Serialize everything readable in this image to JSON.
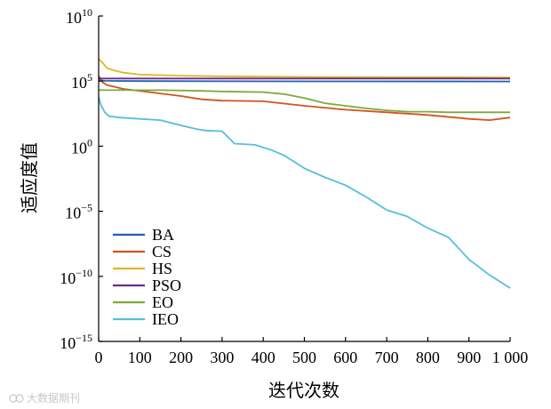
{
  "chart_data": {
    "type": "line",
    "title": "",
    "xlabel": "迭代次数",
    "ylabel": "适应度值",
    "xlim": [
      0,
      1000
    ],
    "yscale": "log",
    "ylim_exp": [
      -15,
      10
    ],
    "x_ticks": [
      0,
      100,
      200,
      300,
      400,
      500,
      600,
      700,
      800,
      900,
      1000
    ],
    "x_tick_labels": [
      "0",
      "100",
      "200",
      "300",
      "400",
      "500",
      "600",
      "700",
      "800",
      "900",
      "1 000"
    ],
    "y_ticks": [
      10,
      5,
      0,
      -5,
      -10,
      -15
    ],
    "y_tick_base": "10",
    "y_tick_exponents": [
      "10",
      "5",
      "0",
      "−5",
      "−10",
      "−15"
    ],
    "legend_position": "bottom-left",
    "series": [
      {
        "name": "BA",
        "color": "#1f5fb0",
        "points": [
          [
            0,
            5.1
          ],
          [
            5,
            5.05
          ],
          [
            15,
            5.02
          ],
          [
            100,
            5.0
          ],
          [
            500,
            4.98
          ],
          [
            1000,
            4.97
          ]
        ]
      },
      {
        "name": "CS",
        "color": "#d2541e",
        "points": [
          [
            0,
            5.4
          ],
          [
            10,
            4.9
          ],
          [
            20,
            4.7
          ],
          [
            40,
            4.55
          ],
          [
            60,
            4.4
          ],
          [
            100,
            4.25
          ],
          [
            150,
            4.05
          ],
          [
            200,
            3.85
          ],
          [
            250,
            3.6
          ],
          [
            300,
            3.5
          ],
          [
            400,
            3.45
          ],
          [
            500,
            3.1
          ],
          [
            600,
            2.8
          ],
          [
            700,
            2.6
          ],
          [
            800,
            2.4
          ],
          [
            900,
            2.1
          ],
          [
            950,
            2.0
          ],
          [
            1000,
            2.2
          ]
        ]
      },
      {
        "name": "HS",
        "color": "#e3b521",
        "points": [
          [
            0,
            6.7
          ],
          [
            10,
            6.4
          ],
          [
            20,
            6.0
          ],
          [
            40,
            5.8
          ],
          [
            60,
            5.65
          ],
          [
            100,
            5.5
          ],
          [
            200,
            5.42
          ],
          [
            300,
            5.37
          ],
          [
            500,
            5.32
          ],
          [
            700,
            5.3
          ],
          [
            1000,
            5.28
          ]
        ]
      },
      {
        "name": "PSO",
        "color": "#6a2a8a",
        "points": [
          [
            0,
            5.2
          ],
          [
            50,
            5.2
          ],
          [
            500,
            5.2
          ],
          [
            1000,
            5.2
          ]
        ]
      },
      {
        "name": "EO",
        "color": "#7aab3c",
        "points": [
          [
            0,
            4.3
          ],
          [
            50,
            4.3
          ],
          [
            150,
            4.3
          ],
          [
            250,
            4.25
          ],
          [
            300,
            4.2
          ],
          [
            400,
            4.15
          ],
          [
            450,
            4.0
          ],
          [
            500,
            3.7
          ],
          [
            550,
            3.3
          ],
          [
            600,
            3.1
          ],
          [
            650,
            2.9
          ],
          [
            700,
            2.75
          ],
          [
            750,
            2.65
          ],
          [
            800,
            2.65
          ],
          [
            850,
            2.6
          ],
          [
            1000,
            2.6
          ]
        ]
      },
      {
        "name": "IEO",
        "color": "#56bde0",
        "points": [
          [
            0,
            3.8
          ],
          [
            5,
            3.2
          ],
          [
            15,
            2.6
          ],
          [
            25,
            2.3
          ],
          [
            50,
            2.2
          ],
          [
            100,
            2.1
          ],
          [
            150,
            2.0
          ],
          [
            200,
            1.6
          ],
          [
            240,
            1.3
          ],
          [
            260,
            1.2
          ],
          [
            300,
            1.15
          ],
          [
            330,
            0.2
          ],
          [
            380,
            0.1
          ],
          [
            420,
            -0.3
          ],
          [
            450,
            -0.7
          ],
          [
            500,
            -1.7
          ],
          [
            550,
            -2.4
          ],
          [
            600,
            -3.0
          ],
          [
            650,
            -3.9
          ],
          [
            700,
            -4.9
          ],
          [
            750,
            -5.4
          ],
          [
            800,
            -6.3
          ],
          [
            850,
            -7.0
          ],
          [
            900,
            -8.7
          ],
          [
            950,
            -9.9
          ],
          [
            1000,
            -10.9
          ]
        ]
      }
    ]
  },
  "watermark": "大数据期刊"
}
